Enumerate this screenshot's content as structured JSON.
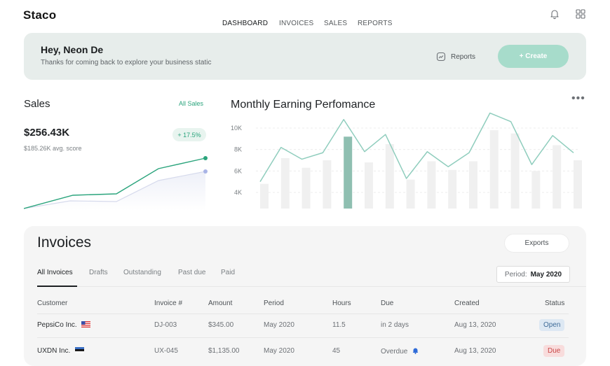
{
  "app": {
    "logo": "Staco"
  },
  "nav": {
    "items": [
      "DASHBOARD",
      "INVOICES",
      "SALES",
      "REPORTS"
    ],
    "active": "DASHBOARD"
  },
  "header_icons": [
    "bell-icon",
    "grid-icon"
  ],
  "banner": {
    "greeting": "Hey, Neon De",
    "subtitle": "Thanks for coming back to explore your business static",
    "reports_label": "Reports",
    "create_label": "+ Create"
  },
  "sales": {
    "title": "Sales",
    "link": "All Sales",
    "value": "$256.43K",
    "avg": "$185.26K avg. score",
    "change": "+ 17.5%",
    "accent": "#2aa47c"
  },
  "earning": {
    "title": "Monthly Earning Perfomance",
    "more": "..."
  },
  "chart_data": {
    "type": "bar",
    "title": "Monthly Earning Perfomance",
    "yticks": [
      "10K",
      "8K",
      "6K",
      "4K"
    ],
    "ylim": [
      2500,
      11500
    ],
    "bars": [
      4800,
      7200,
      6300,
      7000,
      9200,
      6800,
      8500,
      5200,
      6900,
      6100,
      6900,
      9800,
      9500,
      6000,
      8400,
      7000
    ],
    "highlight_index": 4,
    "line": [
      5000,
      8200,
      7100,
      7700,
      10800,
      7800,
      9400,
      5300,
      7800,
      6400,
      7700,
      11400,
      10600,
      6600,
      9300,
      7700
    ],
    "colors": {
      "bar": "#f0f0f0",
      "highlight": "#8fbfb1",
      "line": "#8fcdbd"
    }
  },
  "invoices": {
    "title": "Invoices",
    "exports_label": "Exports",
    "tabs": [
      "All Invoices",
      "Drafts",
      "Outstanding",
      "Past due",
      "Paid"
    ],
    "active_tab": "All Invoices",
    "period_label": "Period:",
    "period_value": "May 2020",
    "columns": [
      "Customer",
      "Invoice #",
      "Amount",
      "Period",
      "Hours",
      "Due",
      "Created",
      "Status"
    ],
    "rows": [
      {
        "customer": "PepsiCo Inc.",
        "flag": "us-flag-icon",
        "invoice": "DJ-003",
        "amount": "$345.00",
        "period": "May 2020",
        "hours": "11.5",
        "due": "in 2 days",
        "created": "Aug 13, 2020",
        "status": "Open"
      },
      {
        "customer": "UXDN Inc.",
        "flag": "ee-flag-icon",
        "invoice": "UX-045",
        "amount": "$1,135.00",
        "period": "May 2020",
        "hours": "45",
        "due": "Overdue",
        "due_icon": "bell-icon",
        "created": "Aug 13, 2020",
        "status": "Due"
      }
    ]
  }
}
